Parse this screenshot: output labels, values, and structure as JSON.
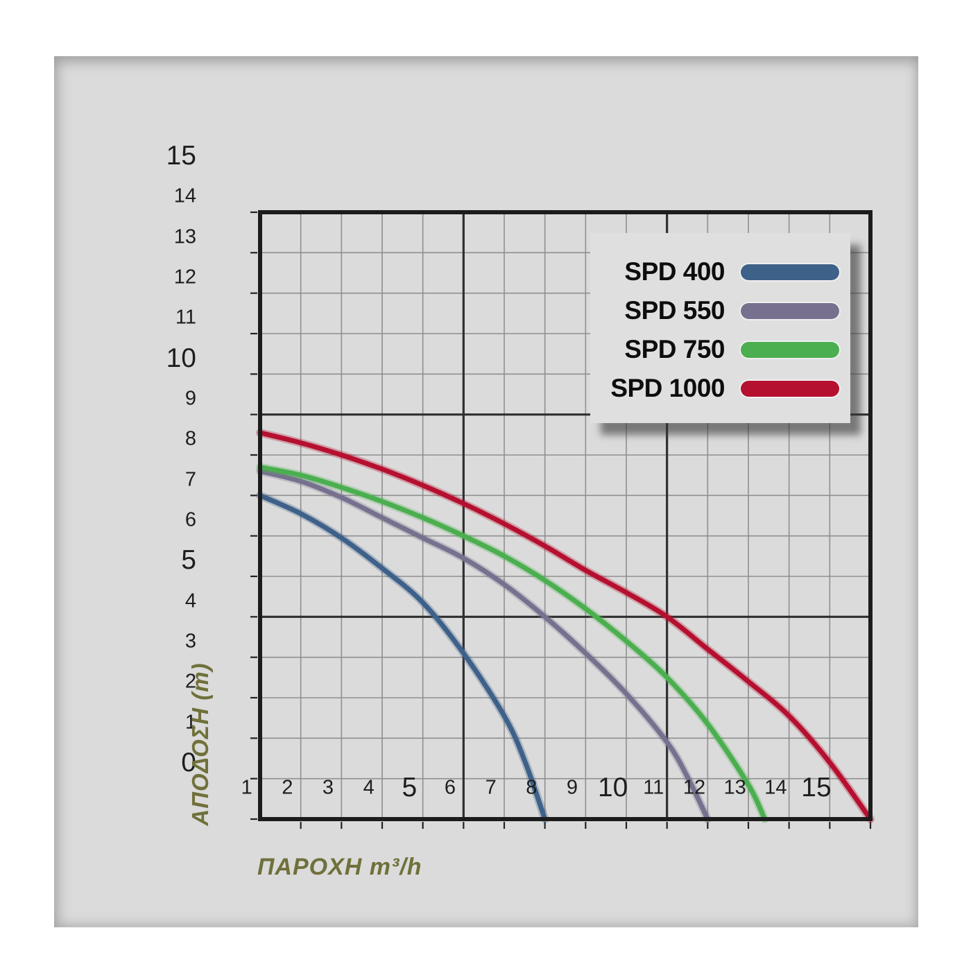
{
  "chart_data": {
    "type": "line",
    "title": "",
    "xlabel": "ΠΑΡΟΧΗ m³/h",
    "ylabel": "ΑΠΟΔΟΣΗ (m)",
    "xlim": [
      0,
      15
    ],
    "ylim": [
      0,
      15
    ],
    "grid": {
      "step": 1,
      "major_step": 5,
      "minor_color": "#8f8f8f",
      "major_color": "#2f2f2f",
      "frame_color": "#1c1c1c"
    },
    "x_ticks": {
      "values": [
        1,
        2,
        3,
        4,
        5,
        6,
        7,
        8,
        9,
        10,
        11,
        12,
        13,
        14,
        15
      ],
      "major": [
        5,
        10,
        15
      ]
    },
    "y_ticks": {
      "values": [
        0,
        1,
        2,
        3,
        4,
        5,
        6,
        7,
        8,
        9,
        10,
        11,
        12,
        13,
        14,
        15
      ],
      "major": [
        0,
        5,
        10,
        15
      ]
    },
    "legend_position": "top-right",
    "series": [
      {
        "name": "SPD 400",
        "color": "#3e6189",
        "points": [
          [
            0,
            8.0
          ],
          [
            1,
            7.55
          ],
          [
            2,
            6.95
          ],
          [
            3,
            6.2
          ],
          [
            4,
            5.35
          ],
          [
            5,
            4.1
          ],
          [
            6,
            2.55
          ],
          [
            6.5,
            1.45
          ],
          [
            7,
            0
          ]
        ]
      },
      {
        "name": "SPD 550",
        "color": "#77718f",
        "points": [
          [
            0,
            8.6
          ],
          [
            1,
            8.35
          ],
          [
            2,
            7.95
          ],
          [
            3,
            7.45
          ],
          [
            4,
            6.95
          ],
          [
            5,
            6.45
          ],
          [
            6,
            5.8
          ],
          [
            7,
            5.0
          ],
          [
            8,
            4.1
          ],
          [
            9,
            3.1
          ],
          [
            10,
            1.9
          ],
          [
            10.5,
            1.05
          ],
          [
            11,
            0
          ]
        ]
      },
      {
        "name": "SPD 750",
        "color": "#4bae4f",
        "points": [
          [
            0,
            8.7
          ],
          [
            1,
            8.5
          ],
          [
            2,
            8.2
          ],
          [
            3,
            7.85
          ],
          [
            4,
            7.45
          ],
          [
            5,
            7.0
          ],
          [
            6,
            6.5
          ],
          [
            7,
            5.9
          ],
          [
            8,
            5.2
          ],
          [
            9,
            4.4
          ],
          [
            10,
            3.5
          ],
          [
            11,
            2.35
          ],
          [
            12,
            0.85
          ],
          [
            12.4,
            0
          ]
        ]
      },
      {
        "name": "SPD 1000",
        "color": "#b5102f",
        "points": [
          [
            0,
            9.55
          ],
          [
            1,
            9.3
          ],
          [
            2,
            9.0
          ],
          [
            3,
            8.65
          ],
          [
            4,
            8.25
          ],
          [
            5,
            7.8
          ],
          [
            6,
            7.3
          ],
          [
            7,
            6.75
          ],
          [
            8,
            6.15
          ],
          [
            9,
            5.6
          ],
          [
            10,
            5.0
          ],
          [
            11,
            4.2
          ],
          [
            12,
            3.4
          ],
          [
            13,
            2.55
          ],
          [
            14,
            1.4
          ],
          [
            15,
            0
          ]
        ]
      }
    ]
  }
}
